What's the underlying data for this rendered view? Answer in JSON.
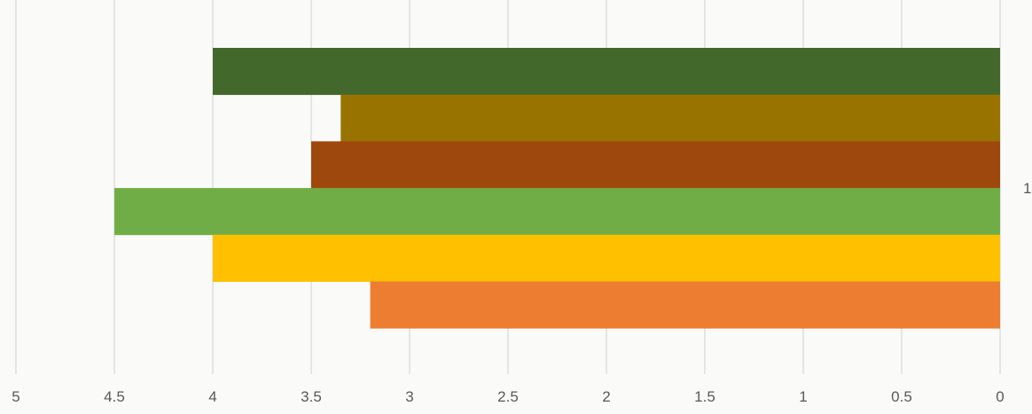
{
  "chart_data": {
    "type": "bar",
    "orientation": "horizontal",
    "x_axis_reversed": true,
    "categories": [
      "1"
    ],
    "xlim": [
      0,
      5
    ],
    "x_ticks": [
      5,
      4.5,
      4,
      3.5,
      3,
      2.5,
      2,
      1.5,
      1,
      0.5,
      0
    ],
    "x_tick_labels": [
      "5",
      "4.5",
      "4",
      "3.5",
      "3",
      "2.5",
      "2",
      "1.5",
      "1",
      "0.5",
      "0"
    ],
    "grid": true,
    "title": "",
    "xlabel": "",
    "ylabel": "",
    "series": [
      {
        "values": [
          4.0
        ],
        "color": "#43682b"
      },
      {
        "values": [
          3.35
        ],
        "color": "#997300"
      },
      {
        "values": [
          3.5
        ],
        "color": "#9e480e"
      },
      {
        "values": [
          4.5
        ],
        "color": "#70ad47"
      },
      {
        "values": [
          4.0
        ],
        "color": "#ffc000"
      },
      {
        "values": [
          3.2
        ],
        "color": "#ed7d31"
      }
    ]
  }
}
